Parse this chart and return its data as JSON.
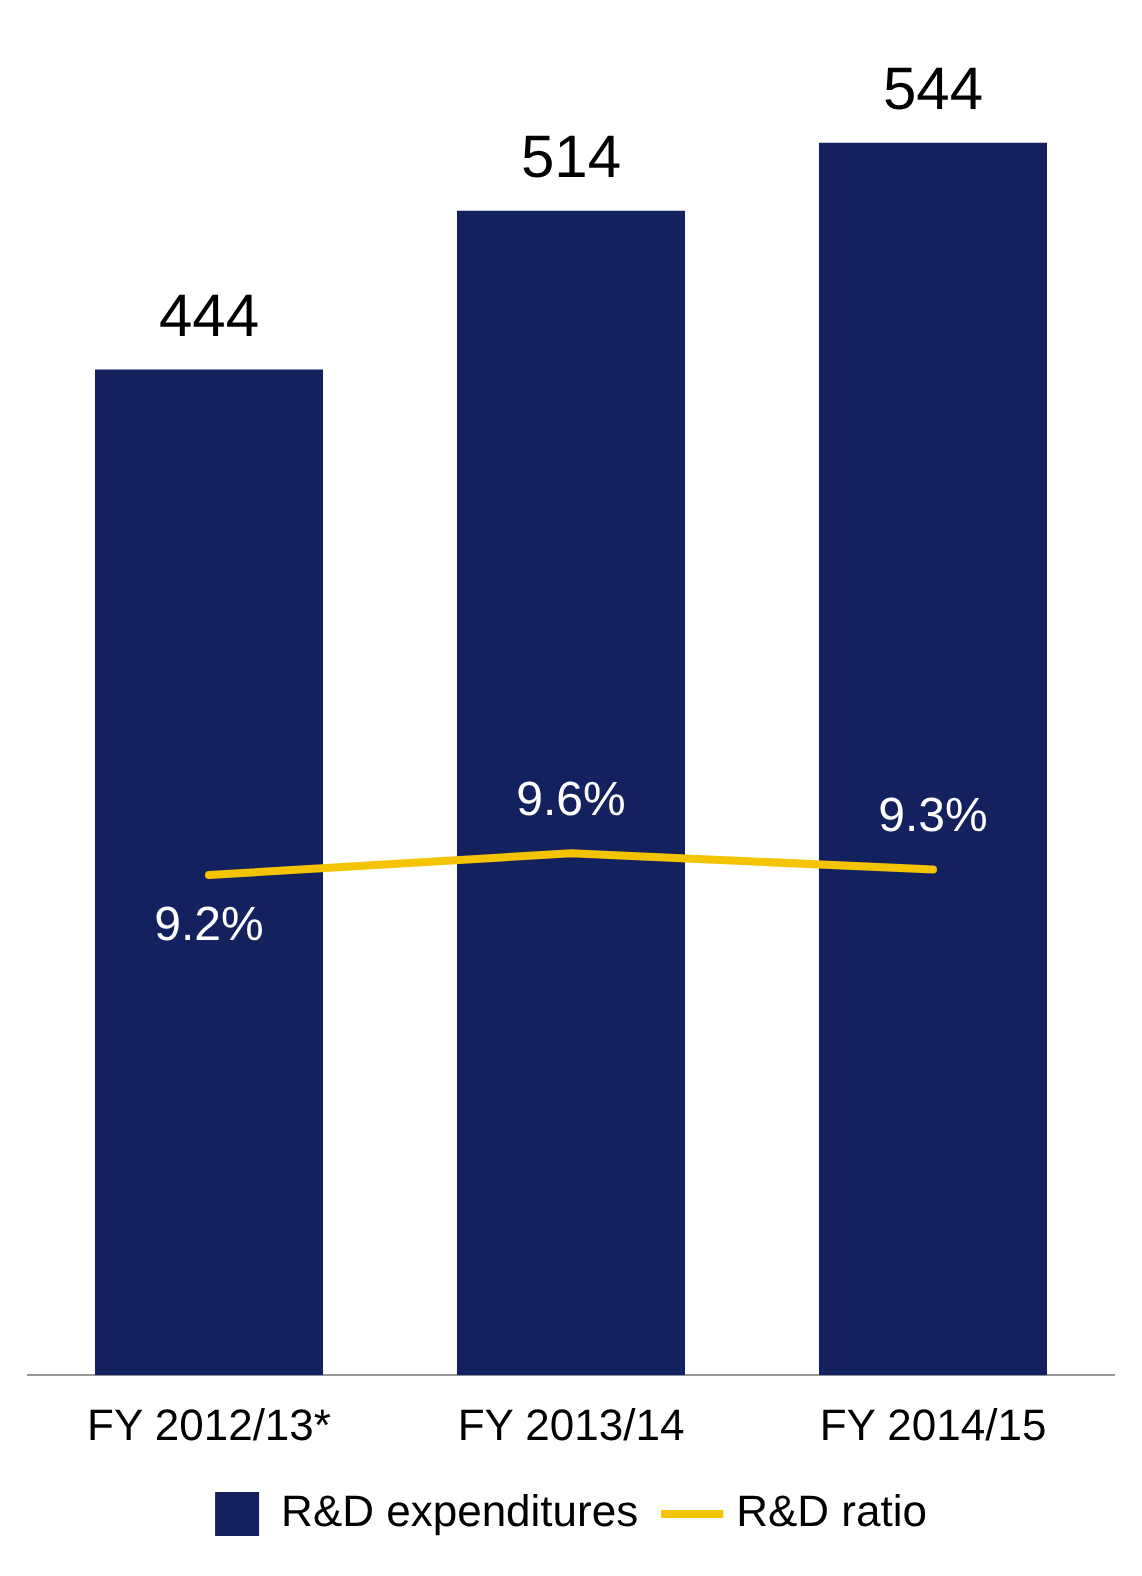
{
  "chart_data": {
    "type": "bar",
    "categories": [
      "FY 2012/13*",
      "FY 2013/14",
      "FY 2014/15"
    ],
    "series": [
      {
        "name": "R&D expenditures",
        "color": "#13215e",
        "values": [
          444,
          514,
          544
        ],
        "value_labels": [
          "444",
          "514",
          "544"
        ]
      },
      {
        "name": "R&D ratio",
        "type": "line",
        "axis": "y2",
        "color": "#f5c400",
        "values": [
          9.2,
          9.6,
          9.3
        ],
        "value_labels": [
          "9.2%",
          "9.6%",
          "9.3%"
        ]
      }
    ],
    "tick_labels": "x",
    "grid": false,
    "legend": "bottom",
    "marker": "none",
    "line_style": "solid"
  }
}
